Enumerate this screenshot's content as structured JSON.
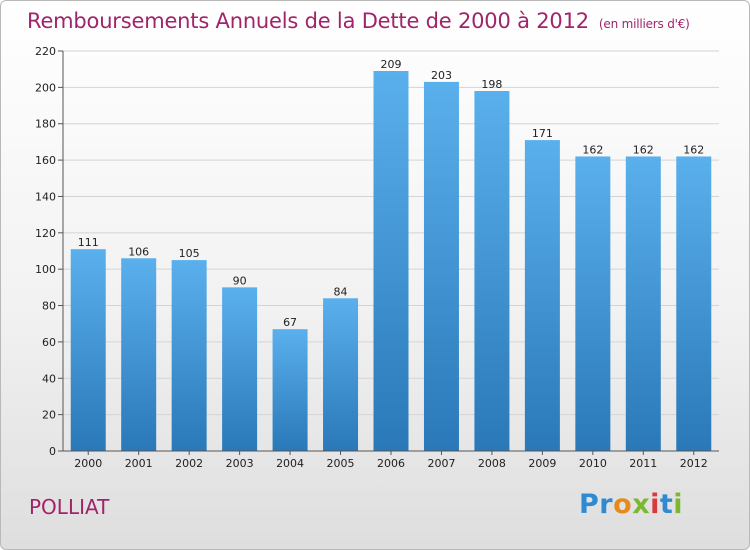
{
  "title": "Remboursements Annuels de la Dette de 2000 à 2012",
  "unit": "(en milliers d'€)",
  "commune": "POLLIAT",
  "logo": {
    "letters": [
      "P",
      "r",
      "o",
      "x",
      "i",
      "t",
      "i"
    ],
    "colors": [
      "#2f8ad1",
      "#2f8ad1",
      "#e88a1a",
      "#7cb82f",
      "#d93a3a",
      "#2f8ad1",
      "#7cb82f"
    ]
  },
  "colors": {
    "bar_top": "#5ab0ec",
    "bar_bottom": "#2a78b8",
    "title": "#a0246a"
  },
  "chart_data": {
    "type": "bar",
    "categories": [
      "2000",
      "2001",
      "2002",
      "2003",
      "2004",
      "2005",
      "2006",
      "2007",
      "2008",
      "2009",
      "2010",
      "2011",
      "2012"
    ],
    "values": [
      111,
      106,
      105,
      90,
      67,
      84,
      209,
      203,
      198,
      171,
      162,
      162,
      162
    ],
    "ylim": [
      0,
      220
    ],
    "yticks": [
      0,
      20,
      40,
      60,
      80,
      100,
      120,
      140,
      160,
      180,
      200,
      220
    ],
    "grid": true
  }
}
